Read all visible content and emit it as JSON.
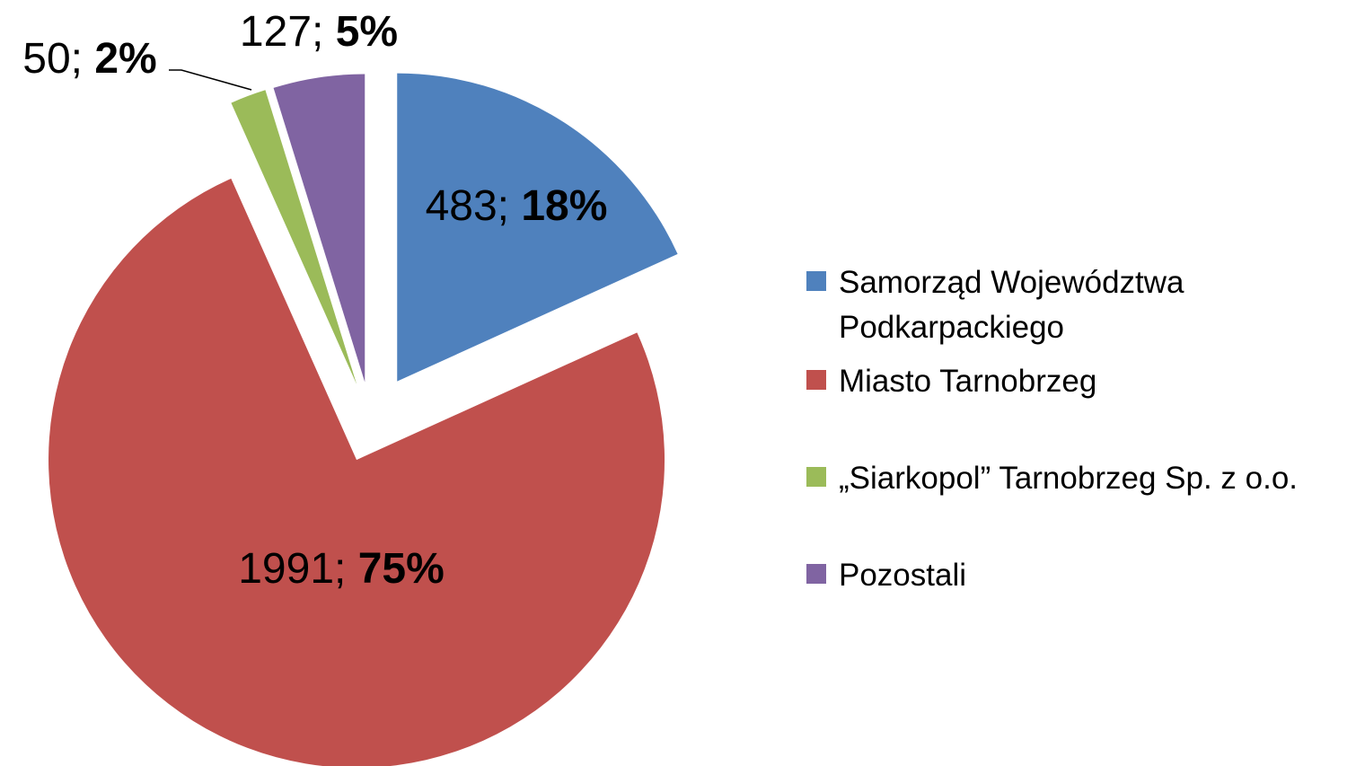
{
  "chart_data": {
    "type": "pie",
    "categories": [
      "Samorząd Województwa Podkarpackiego",
      "Miasto Tarnobrzeg",
      "„Siarkopol” Tarnobrzeg Sp. z o.o.",
      "Pozostali"
    ],
    "values": [
      483,
      1991,
      50,
      127
    ],
    "value_labels": [
      "483; 18%",
      "1991; 75%",
      "50; 2%",
      "127; 5%"
    ],
    "colors": [
      "#4f81bd",
      "#c0504d",
      "#9bbb59",
      "#8064a2"
    ],
    "legend": "right"
  }
}
